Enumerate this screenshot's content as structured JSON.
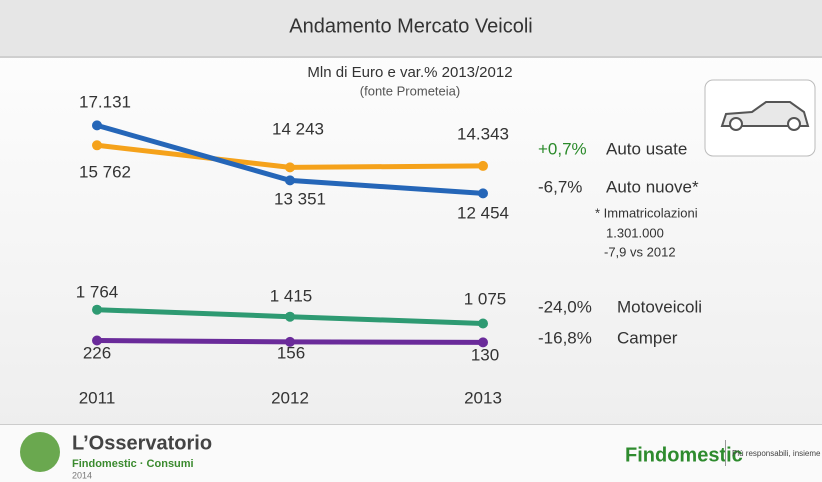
{
  "header": {
    "title": "Andamento Mercato Veicoli"
  },
  "chart_data": [
    {
      "type": "line",
      "subtitle": "Mln di Euro e var.% 2013/2012",
      "source": "(fonte Prometeia)",
      "ylim": [
        12000,
        17500
      ],
      "series": [
        {
          "name": "Auto usate",
          "change": "+0,7%",
          "color": "#f5a21b",
          "values": [
            15762,
            14243,
            14343
          ],
          "value_labels": [
            "15 762",
            "14 243",
            "14.343"
          ]
        },
        {
          "name": "Auto nuove*",
          "change": "-6,7%",
          "color": "#2566b8",
          "values": [
            17131,
            13351,
            12454
          ],
          "value_labels": [
            "17.131",
            "13 351",
            "12 454"
          ]
        }
      ]
    },
    {
      "type": "line",
      "categories": [
        "2011",
        "2012",
        "2013"
      ],
      "ylim": [
        0,
        2000
      ],
      "series": [
        {
          "name": "Motoveicoli",
          "change": "-24,0%",
          "color": "#2e9a72",
          "values": [
            1764,
            1415,
            1075
          ],
          "value_labels": [
            "1 764",
            "1 415",
            "1 075"
          ]
        },
        {
          "name": "Camper",
          "change": "-16,8%",
          "color": "#6a2b9a",
          "values": [
            226,
            156,
            130
          ],
          "value_labels": [
            "226",
            "156",
            "130"
          ]
        }
      ]
    }
  ],
  "note": [
    "* Immatricolazioni",
    "1.301.000",
    "-7,9 vs 2012"
  ],
  "footer": {
    "brand": "L’Osservatorio",
    "sub": "Findomestic · Consumi",
    "year": "2014",
    "company": "Findomestic",
    "slogan": "Più responsabili, insieme"
  }
}
